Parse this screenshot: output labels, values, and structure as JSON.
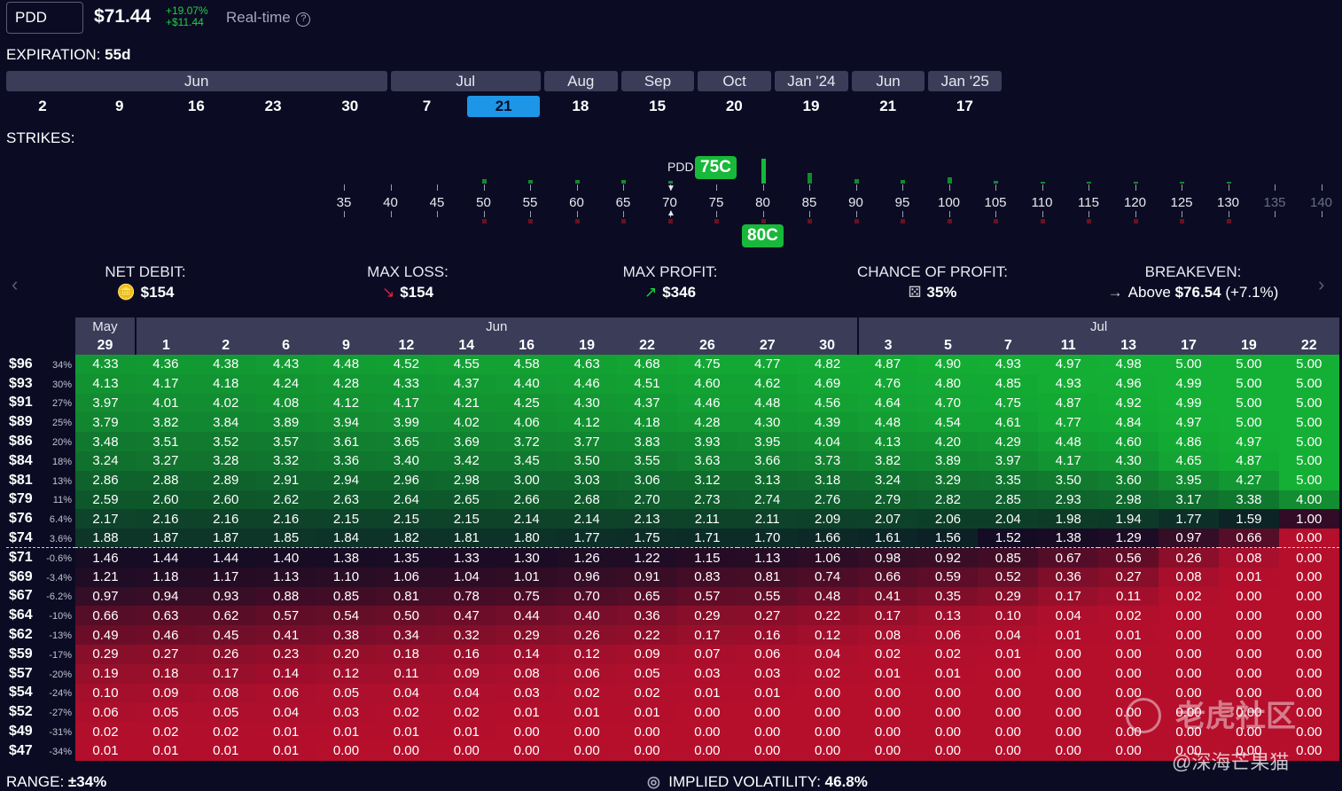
{
  "header": {
    "ticker": "PDD",
    "price": "$71.44",
    "chg_pct": "+19.07%",
    "chg_abs": "+$11.44",
    "realtime": "Real-time",
    "help": "?"
  },
  "expiration": {
    "label": "EXPIRATION:",
    "value": "55d",
    "months": [
      {
        "name": "Jun",
        "span": 5
      },
      {
        "name": "Jul",
        "span": 2
      },
      {
        "name": "Aug",
        "span": 1
      },
      {
        "name": "Sep",
        "span": 1
      },
      {
        "name": "Oct",
        "span": 1
      },
      {
        "name": "Jan '24",
        "span": 1
      },
      {
        "name": "Jun",
        "span": 1
      },
      {
        "name": "Jan '25",
        "span": 1
      }
    ],
    "days": [
      "2",
      "9",
      "16",
      "23",
      "30",
      "7",
      "21",
      "18",
      "15",
      "20",
      "19",
      "21",
      "17"
    ],
    "selected_index": 6
  },
  "strikes": {
    "label": "STRIKES:",
    "underlying": "PDD",
    "values": [
      "35",
      "40",
      "45",
      "50",
      "55",
      "60",
      "65",
      "70",
      "75",
      "80",
      "85",
      "90",
      "95",
      "100",
      "105",
      "110",
      "115",
      "120",
      "125",
      "130",
      "135",
      "140"
    ],
    "long_leg": "75C",
    "short_leg": "80C"
  },
  "stats": [
    {
      "title": "NET DEBIT:",
      "value": "$154",
      "icon": "coins-icon"
    },
    {
      "title": "MAX LOSS:",
      "value": "$154",
      "icon": "down-arrow-icon"
    },
    {
      "title": "MAX PROFIT:",
      "value": "$346",
      "icon": "up-arrow-icon"
    },
    {
      "title": "CHANCE OF PROFIT:",
      "value": "35%",
      "icon": "dice-icon"
    },
    {
      "title": "BREAKEVEN:",
      "prefix": "Above",
      "value": "$76.54",
      "suffix": "(+7.1%)",
      "icon": "right-arrow-icon"
    }
  ],
  "grid": {
    "months": [
      {
        "name": "May",
        "span": 1
      },
      {
        "name": "Jun",
        "span": 12
      },
      {
        "name": "Jul",
        "span": 8
      }
    ],
    "dates": [
      "29",
      "1",
      "2",
      "6",
      "9",
      "12",
      "14",
      "16",
      "19",
      "22",
      "26",
      "27",
      "30",
      "3",
      "5",
      "7",
      "11",
      "13",
      "17",
      "19",
      "22"
    ],
    "rows": [
      {
        "p": "$96",
        "pct": "34%",
        "v": [
          "4.33",
          "4.36",
          "4.38",
          "4.43",
          "4.48",
          "4.52",
          "4.55",
          "4.58",
          "4.63",
          "4.68",
          "4.75",
          "4.77",
          "4.82",
          "4.87",
          "4.90",
          "4.93",
          "4.97",
          "4.98",
          "5.00",
          "5.00",
          "5.00"
        ]
      },
      {
        "p": "$93",
        "pct": "30%",
        "v": [
          "4.13",
          "4.17",
          "4.18",
          "4.24",
          "4.28",
          "4.33",
          "4.37",
          "4.40",
          "4.46",
          "4.51",
          "4.60",
          "4.62",
          "4.69",
          "4.76",
          "4.80",
          "4.85",
          "4.93",
          "4.96",
          "4.99",
          "5.00",
          "5.00"
        ]
      },
      {
        "p": "$91",
        "pct": "27%",
        "v": [
          "3.97",
          "4.01",
          "4.02",
          "4.08",
          "4.12",
          "4.17",
          "4.21",
          "4.25",
          "4.30",
          "4.37",
          "4.46",
          "4.48",
          "4.56",
          "4.64",
          "4.70",
          "4.75",
          "4.87",
          "4.92",
          "4.99",
          "5.00",
          "5.00"
        ]
      },
      {
        "p": "$89",
        "pct": "25%",
        "v": [
          "3.79",
          "3.82",
          "3.84",
          "3.89",
          "3.94",
          "3.99",
          "4.02",
          "4.06",
          "4.12",
          "4.18",
          "4.28",
          "4.30",
          "4.39",
          "4.48",
          "4.54",
          "4.61",
          "4.77",
          "4.84",
          "4.97",
          "5.00",
          "5.00"
        ]
      },
      {
        "p": "$86",
        "pct": "20%",
        "v": [
          "3.48",
          "3.51",
          "3.52",
          "3.57",
          "3.61",
          "3.65",
          "3.69",
          "3.72",
          "3.77",
          "3.83",
          "3.93",
          "3.95",
          "4.04",
          "4.13",
          "4.20",
          "4.29",
          "4.48",
          "4.60",
          "4.86",
          "4.97",
          "5.00"
        ]
      },
      {
        "p": "$84",
        "pct": "18%",
        "v": [
          "3.24",
          "3.27",
          "3.28",
          "3.32",
          "3.36",
          "3.40",
          "3.42",
          "3.45",
          "3.50",
          "3.55",
          "3.63",
          "3.66",
          "3.73",
          "3.82",
          "3.89",
          "3.97",
          "4.17",
          "4.30",
          "4.65",
          "4.87",
          "5.00"
        ]
      },
      {
        "p": "$81",
        "pct": "13%",
        "v": [
          "2.86",
          "2.88",
          "2.89",
          "2.91",
          "2.94",
          "2.96",
          "2.98",
          "3.00",
          "3.03",
          "3.06",
          "3.12",
          "3.13",
          "3.18",
          "3.24",
          "3.29",
          "3.35",
          "3.50",
          "3.60",
          "3.95",
          "4.27",
          "5.00"
        ]
      },
      {
        "p": "$79",
        "pct": "11%",
        "v": [
          "2.59",
          "2.60",
          "2.60",
          "2.62",
          "2.63",
          "2.64",
          "2.65",
          "2.66",
          "2.68",
          "2.70",
          "2.73",
          "2.74",
          "2.76",
          "2.79",
          "2.82",
          "2.85",
          "2.93",
          "2.98",
          "3.17",
          "3.38",
          "4.00"
        ]
      },
      {
        "p": "$76",
        "pct": "6.4%",
        "v": [
          "2.17",
          "2.16",
          "2.16",
          "2.16",
          "2.15",
          "2.15",
          "2.15",
          "2.14",
          "2.14",
          "2.13",
          "2.11",
          "2.11",
          "2.09",
          "2.07",
          "2.06",
          "2.04",
          "1.98",
          "1.94",
          "1.77",
          "1.59",
          "1.00"
        ]
      },
      {
        "p": "$74",
        "pct": "3.6%",
        "v": [
          "1.88",
          "1.87",
          "1.87",
          "1.85",
          "1.84",
          "1.82",
          "1.81",
          "1.80",
          "1.77",
          "1.75",
          "1.71",
          "1.70",
          "1.66",
          "1.61",
          "1.56",
          "1.52",
          "1.38",
          "1.29",
          "0.97",
          "0.66",
          "0.00"
        ]
      },
      {
        "p": "$71",
        "pct": "-0.6%",
        "v": [
          "1.46",
          "1.44",
          "1.44",
          "1.40",
          "1.38",
          "1.35",
          "1.33",
          "1.30",
          "1.26",
          "1.22",
          "1.15",
          "1.13",
          "1.06",
          "0.98",
          "0.92",
          "0.85",
          "0.67",
          "0.56",
          "0.26",
          "0.08",
          "0.00"
        ]
      },
      {
        "p": "$69",
        "pct": "-3.4%",
        "v": [
          "1.21",
          "1.18",
          "1.17",
          "1.13",
          "1.10",
          "1.06",
          "1.04",
          "1.01",
          "0.96",
          "0.91",
          "0.83",
          "0.81",
          "0.74",
          "0.66",
          "0.59",
          "0.52",
          "0.36",
          "0.27",
          "0.08",
          "0.01",
          "0.00"
        ]
      },
      {
        "p": "$67",
        "pct": "-6.2%",
        "v": [
          "0.97",
          "0.94",
          "0.93",
          "0.88",
          "0.85",
          "0.81",
          "0.78",
          "0.75",
          "0.70",
          "0.65",
          "0.57",
          "0.55",
          "0.48",
          "0.41",
          "0.35",
          "0.29",
          "0.17",
          "0.11",
          "0.02",
          "0.00",
          "0.00"
        ]
      },
      {
        "p": "$64",
        "pct": "-10%",
        "v": [
          "0.66",
          "0.63",
          "0.62",
          "0.57",
          "0.54",
          "0.50",
          "0.47",
          "0.44",
          "0.40",
          "0.36",
          "0.29",
          "0.27",
          "0.22",
          "0.17",
          "0.13",
          "0.10",
          "0.04",
          "0.02",
          "0.00",
          "0.00",
          "0.00"
        ]
      },
      {
        "p": "$62",
        "pct": "-13%",
        "v": [
          "0.49",
          "0.46",
          "0.45",
          "0.41",
          "0.38",
          "0.34",
          "0.32",
          "0.29",
          "0.26",
          "0.22",
          "0.17",
          "0.16",
          "0.12",
          "0.08",
          "0.06",
          "0.04",
          "0.01",
          "0.01",
          "0.00",
          "0.00",
          "0.00"
        ]
      },
      {
        "p": "$59",
        "pct": "-17%",
        "v": [
          "0.29",
          "0.27",
          "0.26",
          "0.23",
          "0.20",
          "0.18",
          "0.16",
          "0.14",
          "0.12",
          "0.09",
          "0.07",
          "0.06",
          "0.04",
          "0.02",
          "0.02",
          "0.01",
          "0.00",
          "0.00",
          "0.00",
          "0.00",
          "0.00"
        ]
      },
      {
        "p": "$57",
        "pct": "-20%",
        "v": [
          "0.19",
          "0.18",
          "0.17",
          "0.14",
          "0.12",
          "0.11",
          "0.09",
          "0.08",
          "0.06",
          "0.05",
          "0.03",
          "0.03",
          "0.02",
          "0.01",
          "0.01",
          "0.00",
          "0.00",
          "0.00",
          "0.00",
          "0.00",
          "0.00"
        ]
      },
      {
        "p": "$54",
        "pct": "-24%",
        "v": [
          "0.10",
          "0.09",
          "0.08",
          "0.06",
          "0.05",
          "0.04",
          "0.04",
          "0.03",
          "0.02",
          "0.02",
          "0.01",
          "0.01",
          "0.00",
          "0.00",
          "0.00",
          "0.00",
          "0.00",
          "0.00",
          "0.00",
          "0.00",
          "0.00"
        ]
      },
      {
        "p": "$52",
        "pct": "-27%",
        "v": [
          "0.06",
          "0.05",
          "0.05",
          "0.04",
          "0.03",
          "0.02",
          "0.02",
          "0.01",
          "0.01",
          "0.01",
          "0.00",
          "0.00",
          "0.00",
          "0.00",
          "0.00",
          "0.00",
          "0.00",
          "0.00",
          "0.00",
          "0.00",
          "0.00"
        ]
      },
      {
        "p": "$49",
        "pct": "-31%",
        "v": [
          "0.02",
          "0.02",
          "0.02",
          "0.01",
          "0.01",
          "0.01",
          "0.01",
          "0.00",
          "0.00",
          "0.00",
          "0.00",
          "0.00",
          "0.00",
          "0.00",
          "0.00",
          "0.00",
          "0.00",
          "0.00",
          "0.00",
          "0.00",
          "0.00"
        ]
      },
      {
        "p": "$47",
        "pct": "-34%",
        "v": [
          "0.01",
          "0.01",
          "0.01",
          "0.01",
          "0.00",
          "0.00",
          "0.00",
          "0.00",
          "0.00",
          "0.00",
          "0.00",
          "0.00",
          "0.00",
          "0.00",
          "0.00",
          "0.00",
          "0.00",
          "0.00",
          "0.00",
          "0.00",
          "0.00"
        ]
      }
    ],
    "breakeven_value": 1.54
  },
  "footer": {
    "range_label": "RANGE:",
    "range_value": "±34%",
    "iv_label": "IMPLIED VOLATILITY:",
    "iv_value": "46.8%"
  },
  "watermark": {
    "logo": "老虎社区",
    "user": "@深海芒果猫"
  },
  "colors": {
    "profit": "#14b035",
    "loss": "#c8102e",
    "background": "#0b0c24",
    "selected": "#1e96e8"
  }
}
